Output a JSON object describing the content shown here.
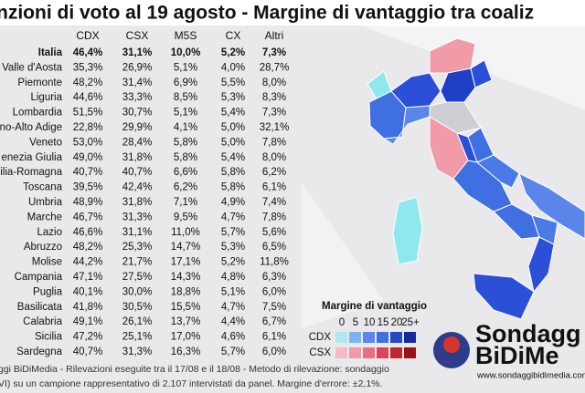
{
  "header": {
    "title": "nzioni di voto al 19 agosto - Margine di vantaggio tra coaliz"
  },
  "table": {
    "columns": [
      "CDX",
      "CSX",
      "M5S",
      "CX",
      "Altri"
    ],
    "rows": [
      [
        "Italia",
        "46,4%",
        "31,1%",
        "10,0%",
        "5,2%",
        "7,3%"
      ],
      [
        "Valle d'Aosta",
        "35,3%",
        "26,9%",
        "5,1%",
        "4,0%",
        "28,7%"
      ],
      [
        "Piemonte",
        "48,2%",
        "31,4%",
        "6,9%",
        "5,5%",
        "8,0%"
      ],
      [
        "Liguria",
        "44,6%",
        "33,3%",
        "8,5%",
        "5,3%",
        "8,3%"
      ],
      [
        "Lombardia",
        "51,5%",
        "30,7%",
        "5,1%",
        "5,4%",
        "7,3%"
      ],
      [
        "no-Alto Adige",
        "22,8%",
        "29,9%",
        "4,1%",
        "5,0%",
        "32,1%"
      ],
      [
        "Veneto",
        "53,0%",
        "28,4%",
        "5,8%",
        "5,0%",
        "7,8%"
      ],
      [
        "enezia Giulia",
        "49,0%",
        "31,8%",
        "5,8%",
        "5,4%",
        "8,0%"
      ],
      [
        "ilia-Romagna",
        "40,7%",
        "40,7%",
        "6,6%",
        "5,8%",
        "6,2%"
      ],
      [
        "Toscana",
        "39,5%",
        "42,4%",
        "6,2%",
        "5,8%",
        "6,1%"
      ],
      [
        "Umbria",
        "48,9%",
        "31,8%",
        "7,1%",
        "4,9%",
        "7,4%"
      ],
      [
        "Marche",
        "46,7%",
        "31,3%",
        "9,5%",
        "4,7%",
        "7,8%"
      ],
      [
        "Lazio",
        "46,6%",
        "31,1%",
        "11,0%",
        "5,7%",
        "5,6%"
      ],
      [
        "Abruzzo",
        "48,2%",
        "25,3%",
        "14,7%",
        "5,3%",
        "6,5%"
      ],
      [
        "Molise",
        "44,2%",
        "21,7%",
        "17,1%",
        "5,2%",
        "11,8%"
      ],
      [
        "Campania",
        "47,1%",
        "27,5%",
        "14,3%",
        "4,8%",
        "6,3%"
      ],
      [
        "Puglia",
        "40,1%",
        "30,0%",
        "18,8%",
        "5,1%",
        "6,0%"
      ],
      [
        "Basilicata",
        "41,8%",
        "30,5%",
        "15,5%",
        "4,7%",
        "7,5%"
      ],
      [
        "Calabria",
        "49,1%",
        "26,1%",
        "13,7%",
        "4,4%",
        "6,7%"
      ],
      [
        "Sicilia",
        "47,2%",
        "25,1%",
        "17,0%",
        "4,6%",
        "6,1%"
      ],
      [
        "Sardegna",
        "40,7%",
        "31,3%",
        "16,3%",
        "5,7%",
        "6,0%"
      ]
    ]
  },
  "legend": {
    "title": "Margine di vantaggio",
    "scale": [
      "0",
      "5",
      "10",
      "15",
      "20",
      "25+"
    ],
    "rows": [
      "CDX",
      "CSX"
    ]
  },
  "footer": {
    "lines": [
      "ggi BiDiMedia - Rilevazioni eseguite tra il 17/08 e il 18/08 - Metodo di rilevazione: sondaggio",
      "VI) su un campione rappresentativo di 2.107 intervistati da panel. Margine d'errore: ±2,1%."
    ]
  },
  "logo": {
    "line1": "Sondagg",
    "line2": "BiDiMe",
    "url": "www.sondaggibidimedia.com"
  }
}
